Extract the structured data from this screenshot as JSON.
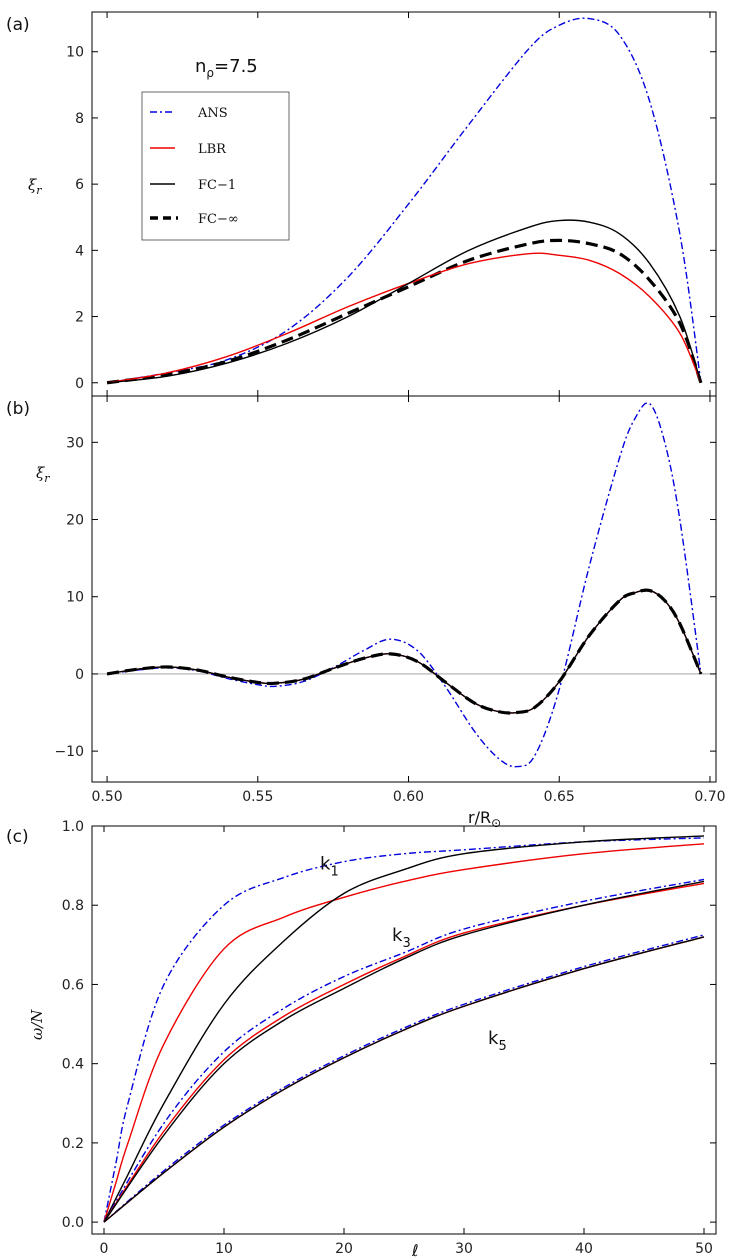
{
  "chart_data": [
    {
      "type": "line",
      "panel": "(a)",
      "ylabel": "ξ_r",
      "xlim": [
        0.5,
        0.7
      ],
      "ylim": [
        -0.4,
        11.2
      ],
      "yticks": [
        "0",
        "2",
        "4",
        "6",
        "8",
        "10"
      ],
      "annotation": {
        "main": "n",
        "sub": "ρ",
        "rest": "=7.5"
      },
      "legend": {
        "position": "upper-left",
        "entries": [
          "ANS",
          "LBR",
          "FC−1",
          "FC−∞"
        ]
      },
      "series": [
        {
          "name": "ANS",
          "color": "#0000dd",
          "style": "dashdot",
          "x": [
            0.5,
            0.52,
            0.54,
            0.56,
            0.58,
            0.6,
            0.62,
            0.64,
            0.65,
            0.66,
            0.67,
            0.68,
            0.69,
            0.697
          ],
          "y": [
            0.0,
            0.3,
            0.7,
            1.6,
            3.2,
            5.4,
            7.8,
            10.1,
            10.8,
            11.0,
            10.5,
            8.5,
            4.5,
            0.0
          ]
        },
        {
          "name": "LBR",
          "color": "#ee0000",
          "style": "solid",
          "x": [
            0.5,
            0.52,
            0.54,
            0.56,
            0.58,
            0.6,
            0.62,
            0.64,
            0.65,
            0.66,
            0.67,
            0.68,
            0.69,
            0.697
          ],
          "y": [
            0.0,
            0.3,
            0.8,
            1.5,
            2.3,
            3.0,
            3.6,
            3.9,
            3.85,
            3.7,
            3.3,
            2.6,
            1.5,
            0.0
          ]
        },
        {
          "name": "FC−1",
          "color": "#000000",
          "style": "solid",
          "x": [
            0.5,
            0.52,
            0.54,
            0.56,
            0.58,
            0.6,
            0.62,
            0.64,
            0.65,
            0.66,
            0.67,
            0.68,
            0.69,
            0.697
          ],
          "y": [
            0.0,
            0.2,
            0.6,
            1.2,
            2.0,
            3.0,
            4.0,
            4.7,
            4.9,
            4.85,
            4.5,
            3.6,
            2.0,
            0.0
          ]
        },
        {
          "name": "FC−∞",
          "color": "#000000",
          "style": "dashed",
          "x": [
            0.5,
            0.52,
            0.54,
            0.56,
            0.58,
            0.6,
            0.62,
            0.64,
            0.65,
            0.66,
            0.67,
            0.68,
            0.69,
            0.697
          ],
          "y": [
            0.0,
            0.25,
            0.65,
            1.3,
            2.1,
            2.9,
            3.7,
            4.2,
            4.3,
            4.2,
            3.9,
            3.1,
            1.8,
            0.0
          ]
        }
      ]
    },
    {
      "type": "line",
      "panel": "(b)",
      "ylabel": "ξ_r",
      "xlabel": "r/R⊙",
      "xlim": [
        0.495,
        0.702
      ],
      "ylim": [
        -14,
        36
      ],
      "xticks": [
        "0.50",
        "0.55",
        "0.60",
        "0.65",
        "0.70"
      ],
      "yticks": [
        "−10",
        "0",
        "10",
        "20",
        "30"
      ],
      "series": [
        {
          "name": "ANS",
          "color": "#0000dd",
          "style": "dashdot",
          "x": [
            0.5,
            0.51,
            0.52,
            0.53,
            0.54,
            0.55,
            0.556,
            0.565,
            0.575,
            0.585,
            0.594,
            0.603,
            0.612,
            0.622,
            0.63,
            0.636,
            0.642,
            0.65,
            0.66,
            0.67,
            0.675,
            0.68,
            0.685,
            0.69,
            0.697
          ],
          "y": [
            0.0,
            0.5,
            0.8,
            0.4,
            -0.6,
            -1.4,
            -1.6,
            -1.0,
            0.8,
            3.0,
            4.5,
            3.0,
            -1.5,
            -7.5,
            -11.0,
            -12.0,
            -10.5,
            -2.0,
            14.0,
            28.0,
            33.0,
            35.0,
            30.0,
            20.0,
            0.0
          ]
        },
        {
          "name": "LBR",
          "color": "#ee0000",
          "style": "solid",
          "x": [
            0.5,
            0.51,
            0.52,
            0.53,
            0.54,
            0.55,
            0.556,
            0.565,
            0.575,
            0.585,
            0.594,
            0.603,
            0.612,
            0.622,
            0.63,
            0.636,
            0.642,
            0.65,
            0.66,
            0.67,
            0.675,
            0.68,
            0.685,
            0.69,
            0.697
          ],
          "y": [
            0.0,
            0.6,
            0.9,
            0.5,
            -0.4,
            -1.1,
            -1.2,
            -0.7,
            0.7,
            2.0,
            2.6,
            1.6,
            -1.0,
            -3.8,
            -4.9,
            -5.0,
            -4.3,
            -1.0,
            5.0,
            9.5,
            10.5,
            10.8,
            9.5,
            6.5,
            0.0
          ]
        },
        {
          "name": "FC−1",
          "color": "#000000",
          "style": "solid",
          "x": [
            0.5,
            0.51,
            0.52,
            0.53,
            0.54,
            0.55,
            0.556,
            0.565,
            0.575,
            0.585,
            0.594,
            0.603,
            0.612,
            0.622,
            0.63,
            0.636,
            0.642,
            0.65,
            0.66,
            0.67,
            0.675,
            0.68,
            0.685,
            0.69,
            0.697
          ],
          "y": [
            0.0,
            0.6,
            0.9,
            0.5,
            -0.4,
            -1.1,
            -1.2,
            -0.7,
            0.7,
            2.0,
            2.6,
            1.6,
            -1.0,
            -3.8,
            -4.9,
            -5.0,
            -4.3,
            -1.0,
            5.0,
            9.5,
            10.5,
            10.8,
            9.5,
            6.5,
            0.0
          ]
        },
        {
          "name": "FC−∞",
          "color": "#000000",
          "style": "dashed",
          "x": [
            0.5,
            0.51,
            0.52,
            0.53,
            0.54,
            0.55,
            0.556,
            0.565,
            0.575,
            0.585,
            0.594,
            0.603,
            0.612,
            0.622,
            0.63,
            0.636,
            0.642,
            0.65,
            0.66,
            0.67,
            0.675,
            0.68,
            0.685,
            0.69,
            0.697
          ],
          "y": [
            0.0,
            0.6,
            0.9,
            0.5,
            -0.4,
            -1.1,
            -1.2,
            -0.7,
            0.7,
            2.0,
            2.6,
            1.6,
            -1.0,
            -3.8,
            -4.9,
            -5.0,
            -4.3,
            -1.0,
            5.0,
            9.5,
            10.5,
            10.8,
            9.5,
            6.5,
            0.0
          ]
        }
      ]
    },
    {
      "type": "line",
      "panel": "(c)",
      "ylabel": "ω/N",
      "xlabel": "ℓ",
      "xlim": [
        -1,
        51
      ],
      "ylim": [
        -0.03,
        1.0
      ],
      "xticks": [
        "0",
        "10",
        "20",
        "30",
        "40",
        "50"
      ],
      "yticks": [
        "0.0",
        "0.2",
        "0.4",
        "0.6",
        "0.8",
        "1.0"
      ],
      "annotations": [
        {
          "main": "k",
          "sub": "1",
          "x": 18,
          "y": 0.89
        },
        {
          "main": "k",
          "sub": "3",
          "x": 24,
          "y": 0.71
        },
        {
          "main": "k",
          "sub": "5",
          "x": 32,
          "y": 0.45
        }
      ],
      "series": [
        {
          "name": "k1 ANS",
          "color": "#0000dd",
          "style": "dashdot",
          "x": [
            0,
            1,
            2,
            5,
            10,
            15,
            20,
            25,
            30,
            40,
            50
          ],
          "y": [
            0.0,
            0.15,
            0.3,
            0.6,
            0.8,
            0.87,
            0.91,
            0.93,
            0.94,
            0.96,
            0.97
          ]
        },
        {
          "name": "k1 LBR",
          "color": "#ee0000",
          "style": "solid",
          "x": [
            0,
            1,
            2,
            5,
            10,
            15,
            20,
            25,
            30,
            40,
            50
          ],
          "y": [
            0.0,
            0.1,
            0.2,
            0.45,
            0.69,
            0.77,
            0.82,
            0.86,
            0.89,
            0.93,
            0.955
          ]
        },
        {
          "name": "k1 FC",
          "color": "#000000",
          "style": "solid",
          "x": [
            0,
            1,
            2,
            5,
            10,
            15,
            20,
            25,
            30,
            40,
            50
          ],
          "y": [
            0.0,
            0.06,
            0.12,
            0.3,
            0.55,
            0.71,
            0.83,
            0.89,
            0.93,
            0.96,
            0.975
          ]
        },
        {
          "name": "k3 ANS",
          "color": "#0000dd",
          "style": "dashdot",
          "x": [
            0,
            5,
            10,
            15,
            20,
            25,
            30,
            40,
            50
          ],
          "y": [
            0.0,
            0.25,
            0.43,
            0.54,
            0.62,
            0.68,
            0.74,
            0.81,
            0.865
          ]
        },
        {
          "name": "k3 LBR",
          "color": "#ee0000",
          "style": "solid",
          "x": [
            0,
            5,
            10,
            15,
            20,
            25,
            30,
            40,
            50
          ],
          "y": [
            0.0,
            0.23,
            0.41,
            0.52,
            0.6,
            0.67,
            0.73,
            0.8,
            0.855
          ]
        },
        {
          "name": "k3 FC",
          "color": "#000000",
          "style": "solid",
          "x": [
            0,
            5,
            10,
            15,
            20,
            25,
            30,
            40,
            50
          ],
          "y": [
            0.0,
            0.22,
            0.4,
            0.51,
            0.59,
            0.665,
            0.725,
            0.8,
            0.86
          ]
        },
        {
          "name": "k5 ANS",
          "color": "#0000dd",
          "style": "dashdot",
          "x": [
            0,
            5,
            10,
            15,
            20,
            25,
            30,
            40,
            50
          ],
          "y": [
            0.0,
            0.13,
            0.245,
            0.34,
            0.42,
            0.49,
            0.55,
            0.645,
            0.725
          ]
        },
        {
          "name": "k5 LBR",
          "color": "#ee0000",
          "style": "solid",
          "x": [
            0,
            5,
            10,
            15,
            20,
            25,
            30,
            40,
            50
          ],
          "y": [
            0.0,
            0.125,
            0.24,
            0.335,
            0.415,
            0.485,
            0.545,
            0.64,
            0.72
          ]
        },
        {
          "name": "k5 FC",
          "color": "#000000",
          "style": "solid",
          "x": [
            0,
            5,
            10,
            15,
            20,
            25,
            30,
            40,
            50
          ],
          "y": [
            0.0,
            0.125,
            0.24,
            0.335,
            0.415,
            0.485,
            0.545,
            0.64,
            0.72
          ]
        }
      ]
    }
  ]
}
